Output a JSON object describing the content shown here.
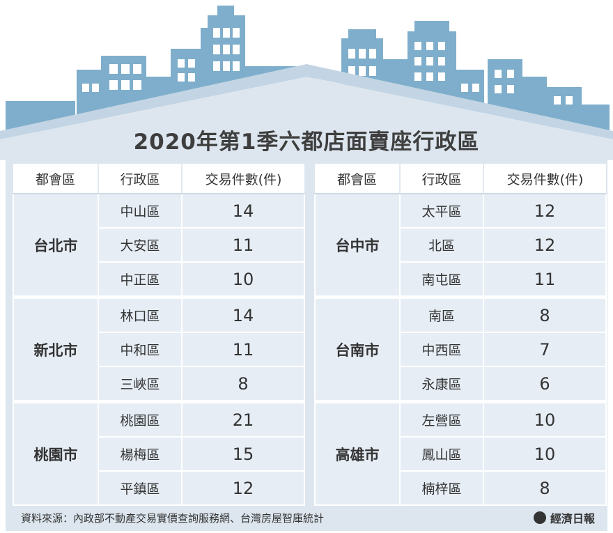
{
  "title": "2020年第1季六都店面賣座行政區",
  "headers": [
    "都會區",
    "行政區",
    "交易件數(件)"
  ],
  "left_groups": [
    {
      "city": "台北市",
      "rows": [
        {
          "district": "中山區",
          "count": "14"
        },
        {
          "district": "大安區",
          "count": "11"
        },
        {
          "district": "中正區",
          "count": "10"
        }
      ]
    },
    {
      "city": "新北市",
      "rows": [
        {
          "district": "林口區",
          "count": "14"
        },
        {
          "district": "中和區",
          "count": "11"
        },
        {
          "district": "三峽區",
          "count": "8"
        }
      ]
    },
    {
      "city": "桃園市",
      "rows": [
        {
          "district": "桃園區",
          "count": "21"
        },
        {
          "district": "楊梅區",
          "count": "15"
        },
        {
          "district": "平鎮區",
          "count": "12"
        }
      ]
    }
  ],
  "right_groups": [
    {
      "city": "台中市",
      "rows": [
        {
          "district": "太平區",
          "count": "12"
        },
        {
          "district": "北區",
          "count": "12"
        },
        {
          "district": "南屯區",
          "count": "11"
        }
      ]
    },
    {
      "city": "台南市",
      "rows": [
        {
          "district": "南區",
          "count": "8"
        },
        {
          "district": "中西區",
          "count": "7"
        },
        {
          "district": "永康區",
          "count": "6"
        }
      ]
    },
    {
      "city": "高雄市",
      "rows": [
        {
          "district": "左營區",
          "count": "10"
        },
        {
          "district": "鳳山區",
          "count": "10"
        },
        {
          "district": "楠梓區",
          "count": "8"
        }
      ]
    }
  ],
  "source": "資料來源：內政部不動產交易實價查詢服務網、台灣房屋智庫統計",
  "logo_text": "經濟日報",
  "colors": {
    "building": "#7eaecb",
    "roof": "#9fbfd6",
    "cell": "#e6edf5"
  },
  "chart_data": {
    "type": "table",
    "title": "2020年第1季六都店面賣座行政區",
    "columns": [
      "都會區",
      "行政區",
      "交易件數(件)"
    ],
    "rows": [
      [
        "台北市",
        "中山區",
        14
      ],
      [
        "台北市",
        "大安區",
        11
      ],
      [
        "台北市",
        "中正區",
        10
      ],
      [
        "新北市",
        "林口區",
        14
      ],
      [
        "新北市",
        "中和區",
        11
      ],
      [
        "新北市",
        "三峽區",
        8
      ],
      [
        "桃園市",
        "桃園區",
        21
      ],
      [
        "桃園市",
        "楊梅區",
        15
      ],
      [
        "桃園市",
        "平鎮區",
        12
      ],
      [
        "台中市",
        "太平區",
        12
      ],
      [
        "台中市",
        "北區",
        12
      ],
      [
        "台中市",
        "南屯區",
        11
      ],
      [
        "台南市",
        "南區",
        8
      ],
      [
        "台南市",
        "中西區",
        7
      ],
      [
        "台南市",
        "永康區",
        6
      ],
      [
        "高雄市",
        "左營區",
        10
      ],
      [
        "高雄市",
        "鳳山區",
        10
      ],
      [
        "高雄市",
        "楠梓區",
        8
      ]
    ]
  }
}
